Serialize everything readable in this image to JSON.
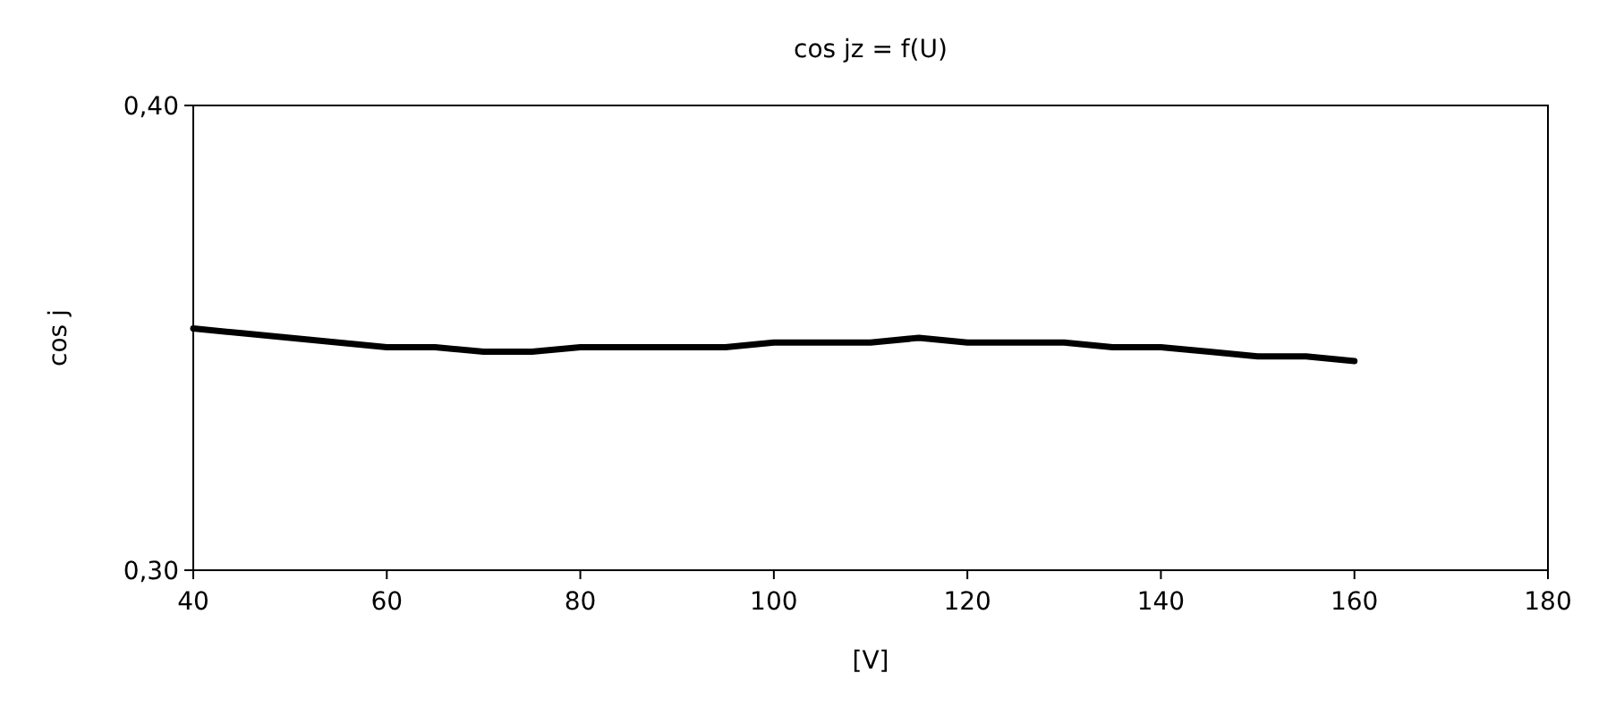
{
  "chart_data": {
    "type": "line",
    "title": "cos jz = f(U)",
    "xlabel": "[V]",
    "ylabel": "cos j",
    "x": [
      40,
      45,
      50,
      55,
      60,
      65,
      70,
      75,
      80,
      85,
      90,
      95,
      100,
      105,
      110,
      115,
      120,
      125,
      130,
      135,
      140,
      145,
      150,
      155,
      160
    ],
    "series": [
      {
        "color": "#000000",
        "values": [
          0.352,
          0.351,
          0.35,
          0.349,
          0.348,
          0.348,
          0.347,
          0.347,
          0.348,
          0.348,
          0.348,
          0.348,
          0.349,
          0.349,
          0.349,
          0.35,
          0.349,
          0.349,
          0.349,
          0.348,
          0.348,
          0.347,
          0.346,
          0.346,
          0.345
        ]
      }
    ],
    "xlim": [
      40,
      180
    ],
    "xticks": [
      40,
      60,
      80,
      100,
      120,
      140,
      160,
      180
    ],
    "ylim": [
      0.3,
      0.4
    ],
    "yticks": [
      {
        "value": 0.3,
        "label": "0,30"
      },
      {
        "value": 0.4,
        "label": "0,40"
      }
    ],
    "grid": false,
    "marker": "none",
    "line_style": "solid"
  }
}
